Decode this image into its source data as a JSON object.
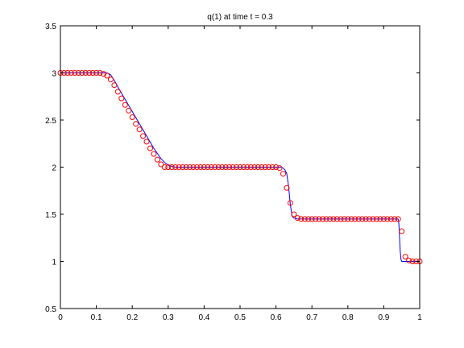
{
  "chart_data": {
    "type": "line",
    "title": "q(1)   at time t = 0.3",
    "xlabel": "",
    "ylabel": "",
    "xlim": [
      0,
      1
    ],
    "ylim": [
      0.5,
      3.5
    ],
    "xticks": [
      "0",
      "0.1",
      "0.2",
      "0.3",
      "0.4",
      "0.5",
      "0.6",
      "0.7",
      "0.8",
      "0.9",
      "1"
    ],
    "xtick_values": [
      0,
      0.1,
      0.2,
      0.3,
      0.4,
      0.5,
      0.6,
      0.7,
      0.8,
      0.9,
      1
    ],
    "yticks": [
      "0.5",
      "1",
      "1.5",
      "2",
      "2.5",
      "3",
      "3.5"
    ],
    "ytick_values": [
      0.5,
      1,
      1.5,
      2,
      2.5,
      3,
      3.5
    ],
    "grid": false,
    "legend": "none",
    "colors": {
      "line": "#0000ff",
      "markers": "#ff0000",
      "axes": "#000000"
    },
    "series": [
      {
        "style": "solid-line",
        "x": [
          0,
          0.13,
          0.14,
          0.15,
          0.16,
          0.18,
          0.2,
          0.22,
          0.24,
          0.26,
          0.28,
          0.29,
          0.3,
          0.31,
          0.32,
          0.33,
          0.34,
          0.35,
          0.5,
          0.6,
          0.615,
          0.62,
          0.625,
          0.63,
          0.635,
          0.64,
          0.645,
          0.65,
          0.66,
          0.7,
          0.9,
          0.94,
          0.942,
          0.944,
          0.946,
          0.948,
          0.95,
          0.955,
          1.0
        ],
        "y": [
          3.0,
          3.0,
          2.98,
          2.92,
          2.85,
          2.72,
          2.59,
          2.46,
          2.33,
          2.2,
          2.09,
          2.05,
          2.02,
          2.01,
          2.0,
          2.0,
          2.0,
          2.0,
          2.0,
          2.0,
          2.0,
          1.99,
          1.97,
          1.93,
          1.8,
          1.6,
          1.48,
          1.46,
          1.45,
          1.45,
          1.45,
          1.45,
          1.4,
          1.25,
          1.1,
          1.02,
          1.0,
          1.0,
          1.0
        ]
      },
      {
        "style": "circle-markers",
        "x": [
          0,
          0.01,
          0.02,
          0.03,
          0.04,
          0.05,
          0.06,
          0.07,
          0.08,
          0.09,
          0.1,
          0.11,
          0.12,
          0.13,
          0.14,
          0.15,
          0.16,
          0.17,
          0.18,
          0.19,
          0.2,
          0.21,
          0.22,
          0.23,
          0.24,
          0.25,
          0.26,
          0.27,
          0.28,
          0.29,
          0.3,
          0.31,
          0.32,
          0.33,
          0.34,
          0.35,
          0.36,
          0.37,
          0.38,
          0.39,
          0.4,
          0.41,
          0.42,
          0.43,
          0.44,
          0.45,
          0.46,
          0.47,
          0.48,
          0.49,
          0.5,
          0.51,
          0.52,
          0.53,
          0.54,
          0.55,
          0.56,
          0.57,
          0.58,
          0.59,
          0.6,
          0.61,
          0.62,
          0.63,
          0.64,
          0.65,
          0.66,
          0.67,
          0.68,
          0.69,
          0.7,
          0.71,
          0.72,
          0.73,
          0.74,
          0.75,
          0.76,
          0.77,
          0.78,
          0.79,
          0.8,
          0.81,
          0.82,
          0.83,
          0.84,
          0.85,
          0.86,
          0.87,
          0.88,
          0.89,
          0.9,
          0.91,
          0.92,
          0.93,
          0.94,
          0.95,
          0.96,
          0.97,
          0.98,
          0.99,
          1.0
        ],
        "y": [
          3.0,
          3.0,
          3.0,
          3.0,
          3.0,
          3.0,
          3.0,
          3.0,
          3.0,
          3.0,
          3.0,
          3.0,
          2.99,
          2.97,
          2.93,
          2.87,
          2.8,
          2.73,
          2.66,
          2.6,
          2.53,
          2.46,
          2.4,
          2.33,
          2.27,
          2.2,
          2.14,
          2.08,
          2.03,
          2.0,
          2.0,
          2.0,
          2.0,
          2.0,
          2.0,
          2.0,
          2.0,
          2.0,
          2.0,
          2.0,
          2.0,
          2.0,
          2.0,
          2.0,
          2.0,
          2.0,
          2.0,
          2.0,
          2.0,
          2.0,
          2.0,
          2.0,
          2.0,
          2.0,
          2.0,
          2.0,
          2.0,
          2.0,
          2.0,
          2.0,
          2.0,
          1.99,
          1.93,
          1.78,
          1.62,
          1.5,
          1.46,
          1.45,
          1.45,
          1.45,
          1.45,
          1.45,
          1.45,
          1.45,
          1.45,
          1.45,
          1.45,
          1.45,
          1.45,
          1.45,
          1.45,
          1.45,
          1.45,
          1.45,
          1.45,
          1.45,
          1.45,
          1.45,
          1.45,
          1.45,
          1.45,
          1.45,
          1.45,
          1.45,
          1.45,
          1.32,
          1.05,
          1.01,
          1.0,
          1.0,
          1.0
        ]
      }
    ]
  }
}
